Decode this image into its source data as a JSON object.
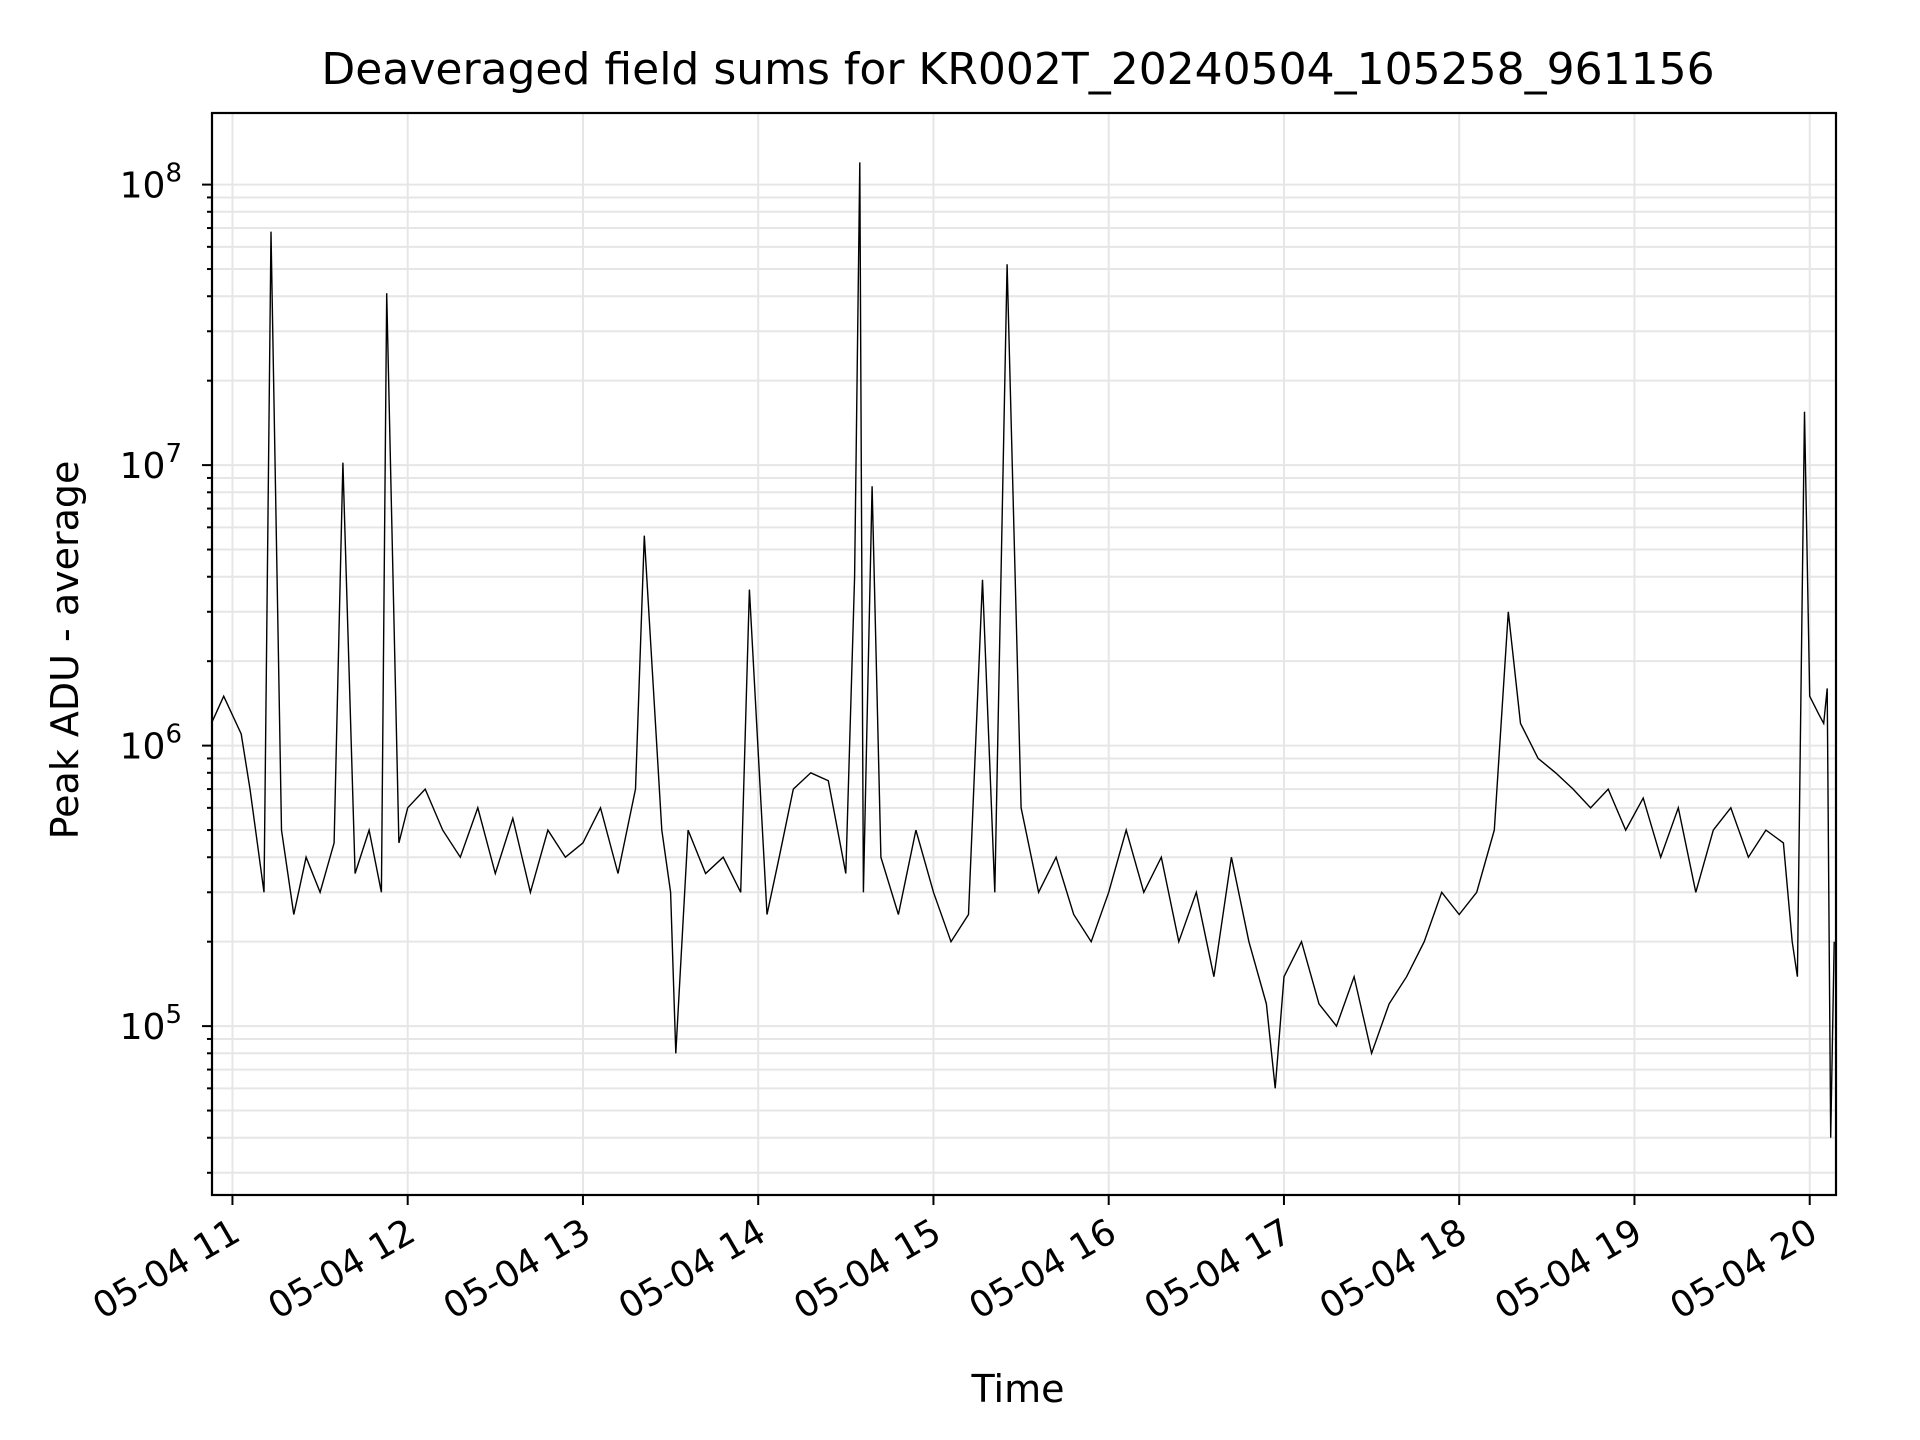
{
  "chart_data": {
    "type": "line",
    "title": "Deaveraged field sums for KR002T_20240504_105258_961156",
    "xlabel": "Time",
    "ylabel": "Peak ADU - average",
    "x_ticks": [
      "05-04 11",
      "05-04 12",
      "05-04 13",
      "05-04 14",
      "05-04 15",
      "05-04 16",
      "05-04 17",
      "05-04 18",
      "05-04 19",
      "05-04 20"
    ],
    "y_ticks": [
      {
        "value": 100000,
        "base": "10",
        "exp": "5"
      },
      {
        "value": 1000000,
        "base": "10",
        "exp": "6"
      },
      {
        "value": 10000000,
        "base": "10",
        "exp": "7"
      },
      {
        "value": 100000000,
        "base": "10",
        "exp": "8"
      }
    ],
    "xlim": [
      "2024-05-04 10:53",
      "2024-05-04 20:09"
    ],
    "ylim": [
      25000,
      180000000
    ],
    "yscale": "log",
    "grid": true,
    "line_color": "#000000",
    "grid_color": "#e6e6e6",
    "series": [
      {
        "x_hours": [
          10.88,
          10.95,
          11.05,
          11.1,
          11.18,
          11.22,
          11.28,
          11.35,
          11.42,
          11.5,
          11.58,
          11.63,
          11.7,
          11.78,
          11.85,
          11.88,
          11.95,
          12.0,
          12.1,
          12.2,
          12.3,
          12.4,
          12.5,
          12.6,
          12.7,
          12.8,
          12.9,
          13.0,
          13.1,
          13.2,
          13.3,
          13.35,
          13.45,
          13.5,
          13.53,
          13.6,
          13.7,
          13.8,
          13.9,
          13.95,
          14.05,
          14.12,
          14.2,
          14.3,
          14.4,
          14.5,
          14.55,
          14.58,
          14.6,
          14.65,
          14.7,
          14.8,
          14.9,
          15.0,
          15.1,
          15.2,
          15.28,
          15.35,
          15.42,
          15.5,
          15.6,
          15.7,
          15.8,
          15.9,
          16.0,
          16.1,
          16.2,
          16.3,
          16.4,
          16.5,
          16.6,
          16.7,
          16.8,
          16.9,
          16.95,
          17.0,
          17.1,
          17.2,
          17.3,
          17.4,
          17.5,
          17.6,
          17.7,
          17.8,
          17.9,
          18.0,
          18.1,
          18.2,
          18.28,
          18.35,
          18.45,
          18.55,
          18.65,
          18.75,
          18.85,
          18.95,
          19.05,
          19.15,
          19.25,
          19.35,
          19.45,
          19.55,
          19.65,
          19.75,
          19.85,
          19.9,
          19.93,
          19.97,
          20.0,
          20.05,
          20.08,
          20.1,
          20.12,
          20.14
        ],
        "values": [
          1200000,
          1500000,
          1100000,
          700000,
          300000,
          68000000,
          500000,
          250000,
          400000,
          300000,
          450000,
          10200000,
          350000,
          500000,
          300000,
          41000000,
          450000,
          600000,
          700000,
          500000,
          400000,
          600000,
          350000,
          550000,
          300000,
          500000,
          400000,
          450000,
          600000,
          350000,
          700000,
          5600000,
          500000,
          300000,
          80000,
          500000,
          350000,
          400000,
          300000,
          3600000,
          250000,
          400000,
          700000,
          800000,
          750000,
          350000,
          4000000,
          120000000,
          300000,
          8400000,
          400000,
          250000,
          500000,
          300000,
          200000,
          250000,
          3900000,
          300000,
          52000000,
          600000,
          300000,
          400000,
          250000,
          200000,
          300000,
          500000,
          300000,
          400000,
          200000,
          300000,
          150000,
          400000,
          200000,
          120000,
          60000,
          150000,
          200000,
          120000,
          100000,
          150000,
          80000,
          120000,
          150000,
          200000,
          300000,
          250000,
          300000,
          500000,
          3000000,
          1200000,
          900000,
          800000,
          700000,
          600000,
          700000,
          500000,
          650000,
          400000,
          600000,
          300000,
          500000,
          600000,
          400000,
          500000,
          450000,
          200000,
          150000,
          15500000,
          1500000,
          1300000,
          1200000,
          1600000,
          40000,
          200000
        ]
      }
    ]
  }
}
